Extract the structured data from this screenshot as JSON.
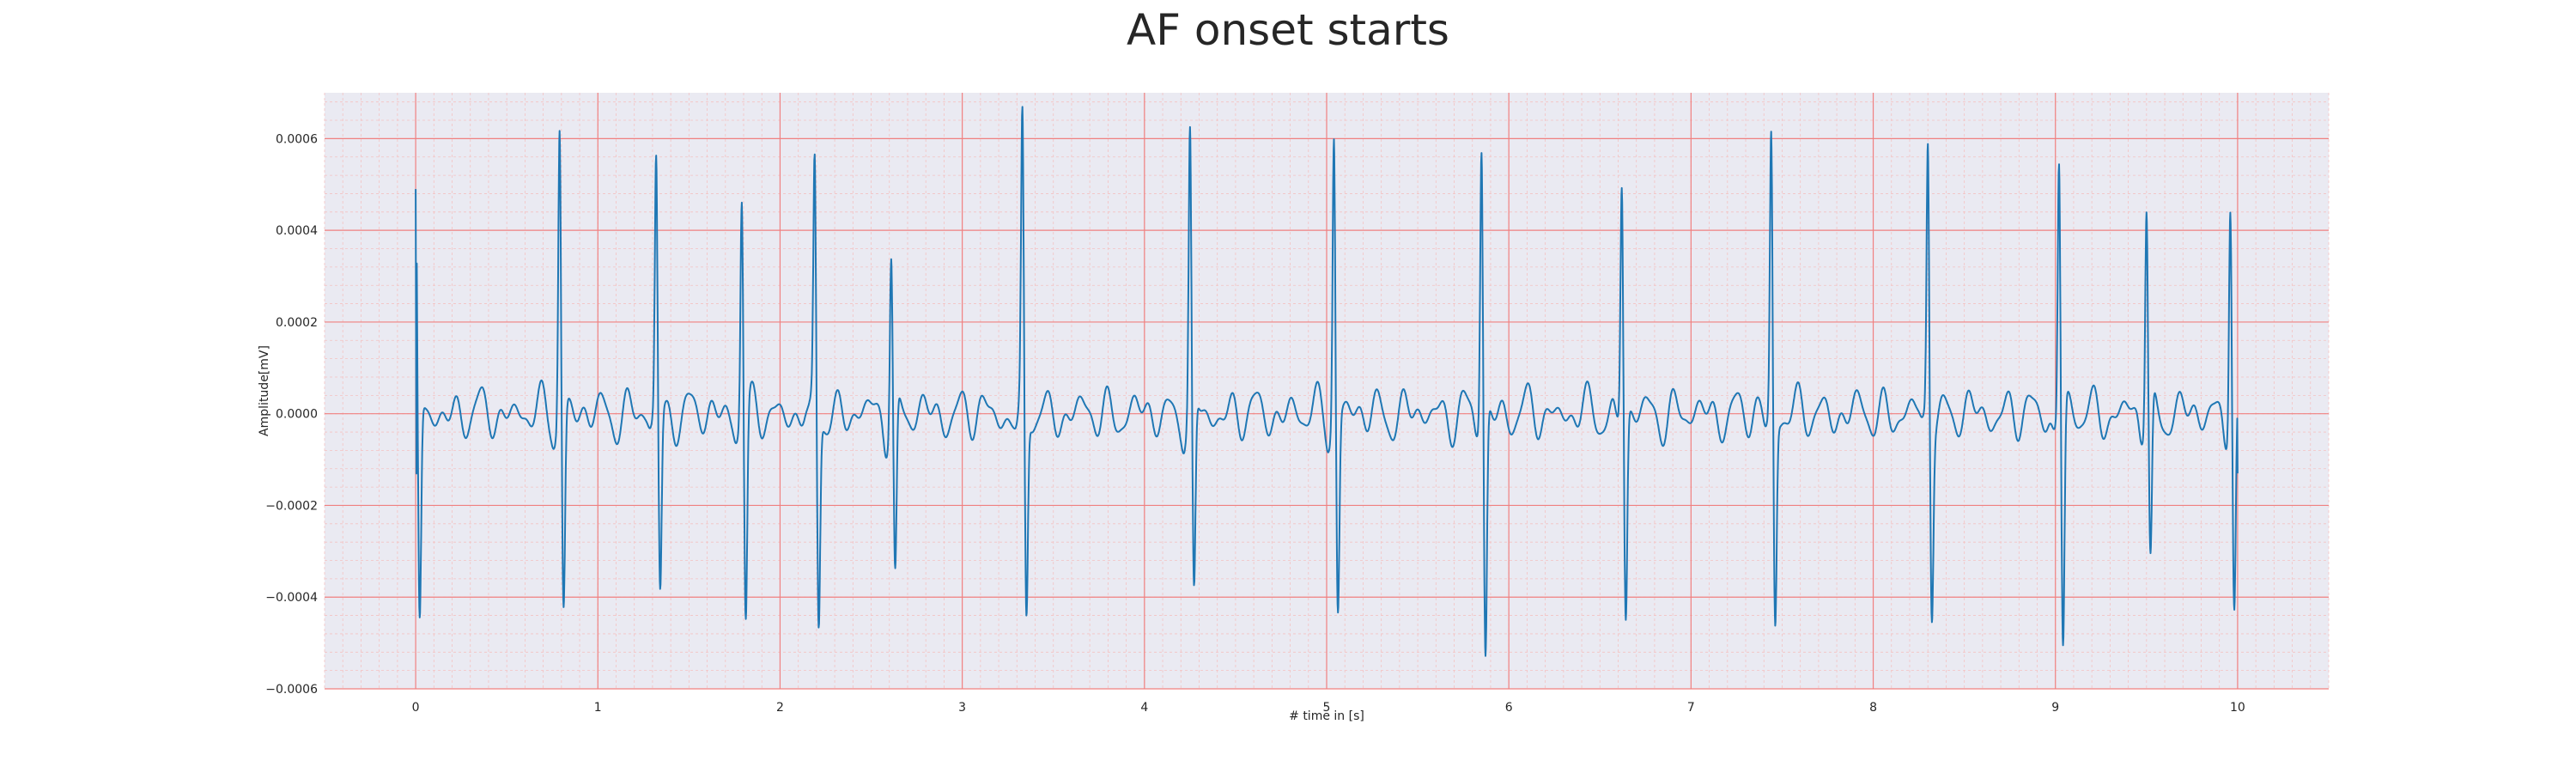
{
  "chart_data": {
    "type": "line",
    "title": "AF onset starts",
    "xlabel": "# time in [s]",
    "ylabel": "Amplitude[mV]",
    "xlim": [
      -0.5,
      10.5
    ],
    "ylim": [
      -0.0006,
      0.0007
    ],
    "xticks": [
      0,
      1,
      2,
      3,
      4,
      5,
      6,
      7,
      8,
      9,
      10
    ],
    "yticks": [
      -0.0006,
      -0.0004,
      -0.0002,
      0.0,
      0.0002,
      0.0004,
      0.0006
    ],
    "ytick_labels": [
      "−0.0006",
      "−0.0004",
      "−0.0002",
      "0.0000",
      "0.0002",
      "0.0004",
      "0.0006"
    ],
    "grid": true,
    "minor_grid": true,
    "colors": {
      "background": "#eaeaf2",
      "major_grid": "#f08080",
      "minor_grid": "#f4c2c2",
      "line": "#1f77b4"
    },
    "beats": [
      {
        "t": 0.0,
        "r": 0.00049,
        "s": -0.00049
      },
      {
        "t": 0.79,
        "r": 0.00065,
        "s": -0.00043
      },
      {
        "t": 1.32,
        "r": 0.00056,
        "s": -0.00039
      },
      {
        "t": 1.79,
        "r": 0.00049,
        "s": -0.00046
      },
      {
        "t": 2.19,
        "r": 0.00054,
        "s": -0.00046
      },
      {
        "t": 2.61,
        "r": 0.00037,
        "s": -0.00038
      },
      {
        "t": 3.33,
        "r": 0.00062,
        "s": -0.00046
      },
      {
        "t": 4.25,
        "r": 0.0006,
        "s": -0.00043
      },
      {
        "t": 5.04,
        "r": 0.00063,
        "s": -0.00043
      },
      {
        "t": 5.85,
        "r": 0.00061,
        "s": -0.00054
      },
      {
        "t": 6.62,
        "r": 0.00053,
        "s": -0.00044
      },
      {
        "t": 7.44,
        "r": 0.00062,
        "s": -0.00045
      },
      {
        "t": 8.3,
        "r": 0.00061,
        "s": -0.0004
      },
      {
        "t": 9.02,
        "r": 0.00058,
        "s": -0.00052
      },
      {
        "t": 9.5,
        "r": 0.00047,
        "s": -0.00035
      },
      {
        "t": 9.96,
        "r": 0.00051,
        "s": -0.00044
      }
    ],
    "t_end": 10.0,
    "end_value": -0.00013
  }
}
